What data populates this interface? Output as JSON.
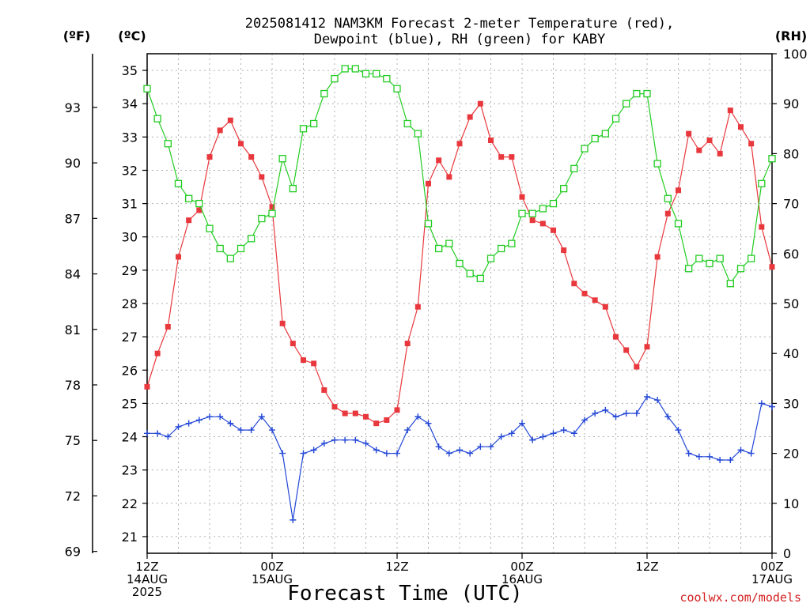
{
  "chart_data": {
    "type": "line",
    "title": "2025081412 NAM3KM Forecast 2-meter Temperature (red),",
    "subtitle": "Dewpoint (blue), RH (green) for KABY",
    "xlabel": "Forecast Time (UTC)",
    "watermark": "coolwx.com/models",
    "unit_labels": {
      "fahrenheit": "(ºF)",
      "celsius": "(ºC)",
      "rh": "(RH)"
    },
    "celsius_axis": {
      "range": [
        20.5,
        35.5
      ],
      "ticks": [
        "21",
        "22",
        "23",
        "24",
        "25",
        "26",
        "27",
        "28",
        "29",
        "30",
        "31",
        "32",
        "33",
        "34",
        "35"
      ]
    },
    "fahrenheit_axis": {
      "ticks": [
        "69",
        "72",
        "75",
        "78",
        "81",
        "84",
        "87",
        "90",
        "93"
      ]
    },
    "rh_axis": {
      "range": [
        0,
        100
      ],
      "ticks": [
        "0",
        "10",
        "20",
        "30",
        "40",
        "50",
        "60",
        "70",
        "80",
        "90",
        "100"
      ]
    },
    "x_axis": {
      "range_hours": [
        0,
        60
      ],
      "ticks": [
        {
          "hour": 0,
          "lines": [
            "12Z",
            "14AUG",
            "2025"
          ]
        },
        {
          "hour": 12,
          "lines": [
            "00Z",
            "15AUG"
          ]
        },
        {
          "hour": 24,
          "lines": [
            "12Z"
          ]
        },
        {
          "hour": 36,
          "lines": [
            "00Z",
            "16AUG"
          ]
        },
        {
          "hour": 48,
          "lines": [
            "12Z"
          ]
        },
        {
          "hour": 60,
          "lines": [
            "00Z",
            "17AUG"
          ]
        }
      ]
    },
    "grid": true,
    "series": [
      {
        "name": "Temperature",
        "axis": "celsius",
        "color": "#e8383d",
        "marker": "filled-square",
        "values": [
          25.5,
          26.5,
          27.3,
          29.4,
          30.5,
          30.8,
          32.4,
          33.2,
          33.5,
          32.8,
          32.4,
          31.8,
          30.9,
          27.4,
          26.8,
          26.3,
          26.2,
          25.4,
          24.9,
          24.7,
          24.7,
          24.6,
          24.4,
          24.5,
          24.8,
          26.8,
          27.9,
          31.6,
          32.3,
          31.8,
          32.8,
          33.6,
          34.0,
          32.9,
          32.4,
          32.4,
          31.2,
          30.5,
          30.4,
          30.2,
          29.6,
          28.6,
          28.3,
          28.1,
          27.9,
          27.0,
          26.6,
          26.1,
          26.7,
          29.4,
          30.7,
          31.4,
          33.1,
          32.6,
          32.9,
          32.5,
          33.8,
          33.3,
          32.8,
          30.3,
          29.1
        ]
      },
      {
        "name": "Dewpoint",
        "axis": "celsius",
        "color": "#2347d6",
        "marker": "plus",
        "values": [
          24.1,
          24.1,
          24.0,
          24.3,
          24.4,
          24.5,
          24.6,
          24.6,
          24.4,
          24.2,
          24.2,
          24.6,
          24.2,
          23.5,
          21.5,
          23.5,
          23.6,
          23.8,
          23.9,
          23.9,
          23.9,
          23.8,
          23.6,
          23.5,
          23.5,
          24.2,
          24.6,
          24.4,
          23.7,
          23.5,
          23.6,
          23.5,
          23.7,
          23.7,
          24.0,
          24.1,
          24.4,
          23.9,
          24.0,
          24.1,
          24.2,
          24.1,
          24.5,
          24.7,
          24.8,
          24.6,
          24.7,
          24.7,
          25.2,
          25.1,
          24.6,
          24.2,
          23.5,
          23.4,
          23.4,
          23.3,
          23.3,
          23.6,
          23.5,
          25.0,
          24.9
        ]
      },
      {
        "name": "RH",
        "axis": "rh",
        "color": "#22cc22",
        "marker": "open-square",
        "values": [
          93,
          87,
          82,
          74,
          71,
          70,
          65,
          61,
          59,
          61,
          63,
          67,
          68,
          79,
          73,
          85,
          86,
          92,
          95,
          97,
          97,
          96,
          96,
          95,
          93,
          86,
          84,
          66,
          61,
          62,
          58,
          56,
          55,
          59,
          61,
          62,
          68,
          68,
          69,
          70,
          73,
          77,
          81,
          83,
          84,
          87,
          90,
          92,
          92,
          78,
          71,
          66,
          57,
          59,
          58,
          59,
          54,
          57,
          59,
          74,
          79
        ]
      }
    ]
  }
}
